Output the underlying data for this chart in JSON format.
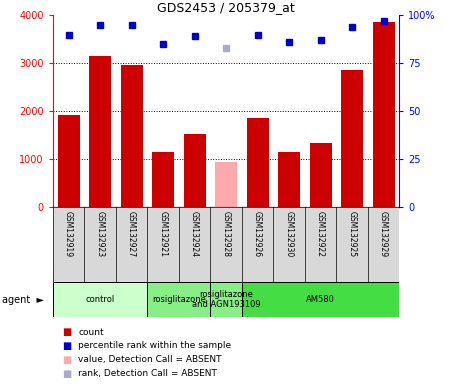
{
  "title": "GDS2453 / 205379_at",
  "samples": [
    "GSM132919",
    "GSM132923",
    "GSM132927",
    "GSM132921",
    "GSM132924",
    "GSM132928",
    "GSM132926",
    "GSM132930",
    "GSM132922",
    "GSM132925",
    "GSM132929"
  ],
  "counts": [
    1920,
    3150,
    2970,
    1160,
    1530,
    950,
    1870,
    1160,
    1340,
    2870,
    3870
  ],
  "absent_flags": [
    false,
    false,
    false,
    false,
    false,
    true,
    false,
    false,
    false,
    false,
    false
  ],
  "percentile_ranks": [
    90,
    95,
    95,
    85,
    89,
    83,
    90,
    86,
    87,
    94,
    97
  ],
  "absent_rank_flags": [
    false,
    false,
    false,
    false,
    false,
    true,
    false,
    false,
    false,
    false,
    false
  ],
  "bar_color_normal": "#cc0000",
  "bar_color_absent": "#ffaaaa",
  "dot_color_normal": "#0000cc",
  "dot_color_absent": "#aaaacc",
  "groups": [
    {
      "label": "control",
      "start": 0,
      "end": 3,
      "color": "#ccffcc"
    },
    {
      "label": "rosiglitazone",
      "start": 3,
      "end": 5,
      "color": "#88ee88"
    },
    {
      "label": "rosiglitazone\nand AGN193109",
      "start": 5,
      "end": 6,
      "color": "#88ee88"
    },
    {
      "label": "AM580",
      "start": 6,
      "end": 11,
      "color": "#44dd44"
    }
  ],
  "ylim_left": [
    0,
    4000
  ],
  "ylim_right": [
    0,
    100
  ],
  "yticks_left": [
    0,
    1000,
    2000,
    3000,
    4000
  ],
  "ytick_labels_left": [
    "0",
    "1000",
    "2000",
    "3000",
    "4000"
  ],
  "yticks_right": [
    0,
    25,
    50,
    75,
    100
  ],
  "ytick_labels_right": [
    "0",
    "25",
    "50",
    "75",
    "100%"
  ],
  "grid_lines": [
    1000,
    2000,
    3000
  ],
  "legend_items": [
    {
      "label": "count",
      "color": "#cc0000"
    },
    {
      "label": "percentile rank within the sample",
      "color": "#0000cc"
    },
    {
      "label": "value, Detection Call = ABSENT",
      "color": "#ffaaaa"
    },
    {
      "label": "rank, Detection Call = ABSENT",
      "color": "#aaaacc"
    }
  ],
  "label_box_color": "#d8d8d8",
  "background_color": "#ffffff"
}
